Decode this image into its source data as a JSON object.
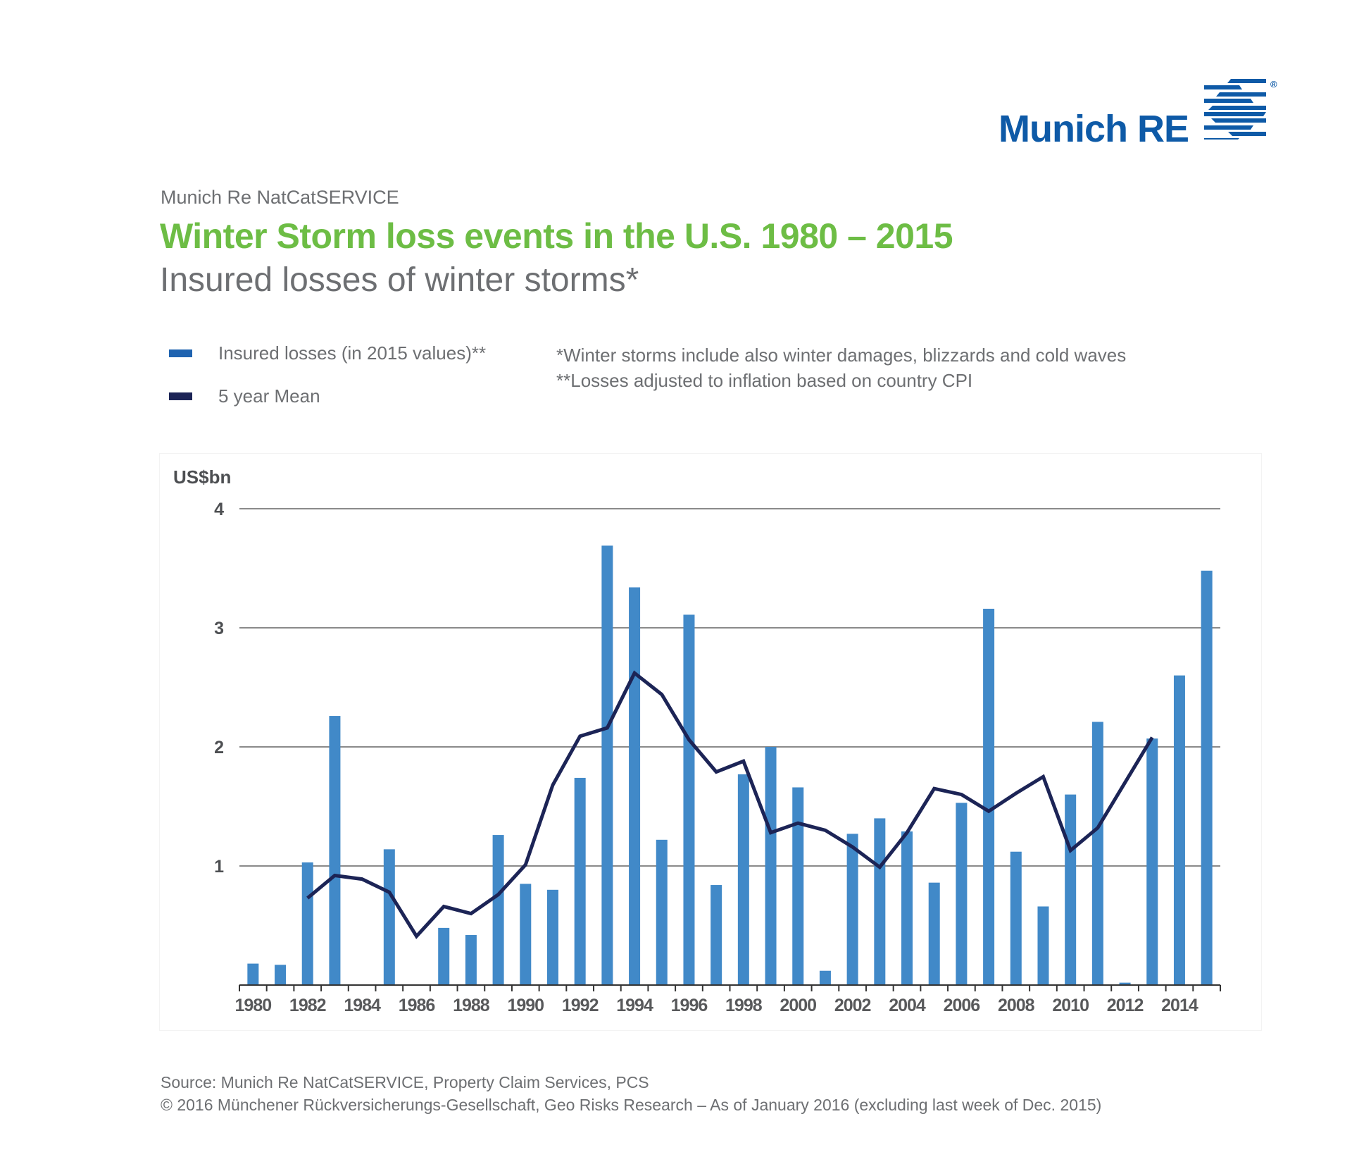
{
  "logo": {
    "text": "Munich RE",
    "registered": "®",
    "brand_color": "#0e5aa7"
  },
  "header": {
    "kicker": "Munich Re NatCatSERVICE",
    "title": "Winter Storm loss events in the U.S. 1980 – 2015",
    "subtitle": "Insured losses of winter storms*"
  },
  "legend": [
    {
      "label": "Insured losses (in 2015 values)**",
      "color": "#1f63b0"
    },
    {
      "label": "5 year Mean",
      "color": "#1c2456"
    }
  ],
  "notes": [
    "*Winter storms include also winter damages, blizzards and cold waves",
    "**Losses adjusted to inflation based on country CPI"
  ],
  "footer": {
    "source": "Source: Munich Re NatCatSERVICE, Property Claim Services, PCS",
    "copyright": "© 2016 Münchener Rückversicherungs-Gesellschaft, Geo Risks Research – As of January 2016 (excluding last week of Dec. 2015)"
  },
  "chart_data": {
    "type": "bar",
    "title": "Insured losses of winter storms*",
    "ylabel": "US$bn",
    "xlabel": "",
    "ylim": [
      0,
      4
    ],
    "yticks": [
      1,
      2,
      3,
      4
    ],
    "grid": true,
    "legend_position": "top-left",
    "categories": [
      1980,
      1981,
      1982,
      1983,
      1984,
      1985,
      1986,
      1987,
      1988,
      1989,
      1990,
      1991,
      1992,
      1993,
      1994,
      1995,
      1996,
      1997,
      1998,
      1999,
      2000,
      2001,
      2002,
      2003,
      2004,
      2005,
      2006,
      2007,
      2008,
      2009,
      2010,
      2011,
      2012,
      2013,
      2014,
      2015
    ],
    "xtick_labels": [
      "1980",
      "1982",
      "1984",
      "1986",
      "1988",
      "1990",
      "1992",
      "1994",
      "1996",
      "1998",
      "2000",
      "2002",
      "2004",
      "2006",
      "2008",
      "2010",
      "2012",
      "2014"
    ],
    "series": [
      {
        "name": "Insured losses (in 2015 values)**",
        "type": "bar",
        "color": "#4189c8",
        "values": [
          0.18,
          0.17,
          1.03,
          2.26,
          0,
          1.14,
          0,
          0.48,
          0.42,
          1.26,
          0.85,
          0.8,
          1.74,
          3.69,
          3.34,
          1.22,
          3.11,
          0.84,
          1.77,
          2.0,
          1.66,
          0.12,
          1.27,
          1.4,
          1.29,
          0.86,
          1.53,
          3.16,
          1.12,
          0.66,
          1.6,
          2.21,
          0.02,
          2.07,
          2.6,
          3.48
        ]
      },
      {
        "name": "5 year Mean",
        "type": "line",
        "color": "#1c2456",
        "values": [
          null,
          null,
          0.73,
          0.92,
          0.89,
          0.78,
          0.41,
          0.66,
          0.6,
          0.76,
          1.01,
          1.68,
          2.09,
          2.16,
          2.62,
          2.44,
          2.06,
          1.79,
          1.88,
          1.28,
          1.36,
          1.3,
          1.16,
          0.99,
          1.28,
          1.65,
          1.6,
          1.46,
          1.61,
          1.75,
          1.13,
          1.32,
          1.7,
          2.08,
          null,
          null
        ]
      }
    ]
  }
}
